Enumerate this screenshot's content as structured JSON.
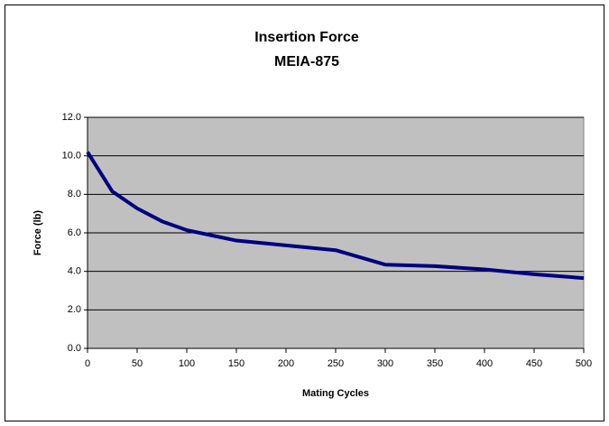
{
  "chart_data": {
    "type": "line",
    "title": "Insertion Force",
    "subtitle": "MEIA-875",
    "x_label": "Mating Cycles",
    "y_label": "Force (lb)",
    "x": [
      0,
      25,
      50,
      75,
      100,
      150,
      200,
      250,
      300,
      350,
      400,
      450,
      500
    ],
    "series": [
      {
        "name": "Insertion Force",
        "color": "#000080",
        "values": [
          10.2,
          8.15,
          7.27,
          6.6,
          6.14,
          5.6,
          5.35,
          5.1,
          4.35,
          4.27,
          4.1,
          3.85,
          3.65
        ]
      }
    ],
    "xlim": [
      0,
      500
    ],
    "xticks": [
      0,
      50,
      100,
      150,
      200,
      250,
      300,
      350,
      400,
      450,
      500
    ],
    "ylim": [
      0,
      12
    ],
    "yticks": [
      {
        "value": 0,
        "label": "0.0"
      },
      {
        "value": 2,
        "label": "2.0"
      },
      {
        "value": 4,
        "label": "4.0"
      },
      {
        "value": 6,
        "label": "6.0"
      },
      {
        "value": 8,
        "label": "8.0"
      },
      {
        "value": 10,
        "label": "10.0"
      },
      {
        "value": 12,
        "label": "12.0"
      }
    ],
    "grid": true,
    "plot_background": "#c0c0c0"
  }
}
